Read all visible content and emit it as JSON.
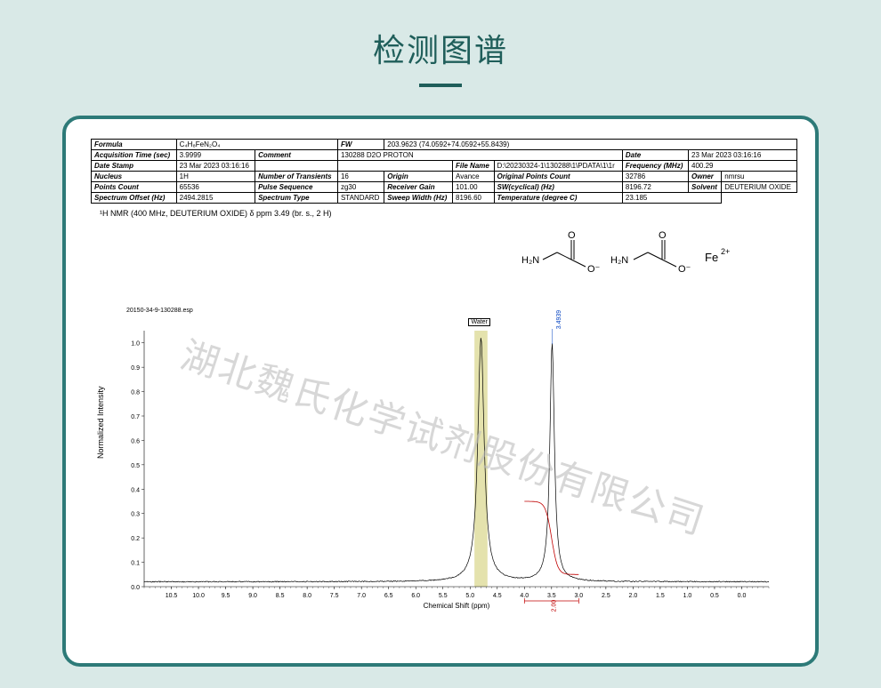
{
  "page": {
    "title": "检测图谱",
    "watermark": "湖北魏氏化学试剂股份有限公司",
    "bg_color": "#d9e9e7",
    "frame_border": "#2d7a78",
    "title_color": "#1f5e5a"
  },
  "info_table": {
    "rows": [
      [
        {
          "l": "Formula",
          "v": "C₄H₈FeN₂O₄",
          "span": 2
        },
        {
          "l": "FW",
          "v": "203.9623 (74.0592+74.0592+55.8439)",
          "span": 6
        }
      ],
      [
        {
          "l": "Acquisition Time (sec)",
          "v": "3.9999"
        },
        {
          "l": "Comment",
          "v": "130288 D2O PROTON",
          "span": 4
        },
        {
          "l": "Date",
          "v": "23 Mar 2023 03:16:16",
          "span": 2
        }
      ],
      [
        {
          "l": "Date Stamp",
          "v": "23 Mar 2023 03:16:16"
        },
        {
          "l": "",
          "v": "",
          "span": 2
        },
        {
          "l": "File Name",
          "v": "D:\\20230324-1\\130288\\1\\PDATA\\1\\1r"
        },
        {
          "l": "Frequency (MHz)",
          "v": "400.29",
          "span": 2
        }
      ],
      [
        {
          "l": "Nucleus",
          "v": "1H"
        },
        {
          "l": "Number of Transients",
          "v": "16"
        },
        {
          "l": "Origin",
          "v": "Avance"
        },
        {
          "l": "Original Points Count",
          "v": "32786"
        },
        {
          "l": "Owner",
          "v": "nmrsu"
        }
      ],
      [
        {
          "l": "Points Count",
          "v": "65536"
        },
        {
          "l": "Pulse Sequence",
          "v": "zg30"
        },
        {
          "l": "Receiver Gain",
          "v": "101.00"
        },
        {
          "l": "SW(cyclical) (Hz)",
          "v": "8196.72"
        },
        {
          "l": "Solvent",
          "v": "DEUTERIUM OXIDE"
        }
      ],
      [
        {
          "l": "Spectrum Offset (Hz)",
          "v": "2494.2815"
        },
        {
          "l": "Spectrum Type",
          "v": "STANDARD"
        },
        {
          "l": "Sweep Width (Hz)",
          "v": "8196.60"
        },
        {
          "l": "Temperature (degree C)",
          "v": "23.185",
          "span": 2
        }
      ]
    ]
  },
  "nmr_summary": "¹H NMR (400 MHz, DEUTERIUM OXIDE) δ ppm 3.49 (br. s., 2 H)",
  "chart": {
    "esp_label": "20150-34-9-130288.esp",
    "xlabel": "Chemical Shift (ppm)",
    "ylabel": "Normalized Intensity",
    "xlim": [
      11.0,
      -0.5
    ],
    "xticks": [
      10.5,
      10.0,
      9.5,
      9.0,
      8.5,
      8.0,
      7.5,
      7.0,
      6.5,
      6.0,
      5.5,
      5.0,
      4.5,
      4.0,
      3.5,
      3.0,
      2.5,
      2.0,
      1.5,
      1.0,
      0.5,
      0
    ],
    "ylim": [
      0,
      1.05
    ],
    "yticks": [
      0,
      0.1,
      0.2,
      0.3,
      0.4,
      0.5,
      0.6,
      0.7,
      0.8,
      0.9,
      1.0
    ],
    "line_color": "#000000",
    "integral_color": "#c00000",
    "peak_label_color": "#0040c0",
    "water_band_color": "#d9d58a",
    "water_band_ppm": [
      4.92,
      4.68
    ],
    "water_label": "Water",
    "peaks": [
      {
        "ppm": 4.8,
        "height": 1.0,
        "width": 0.14
      },
      {
        "ppm": 3.49,
        "height": 0.98,
        "width": 0.1,
        "label": "3.4939"
      }
    ],
    "integral": {
      "from_ppm": 4.0,
      "to_ppm": 3.0,
      "value": "2.00"
    },
    "baseline": 0.02
  },
  "structure": {
    "formula_display": "H₂N⎯CH₂⎯C(=O)⎯O⁻ · H₂N⎯CH₂⎯C(=O)⎯O⁻  Fe²⁺"
  }
}
